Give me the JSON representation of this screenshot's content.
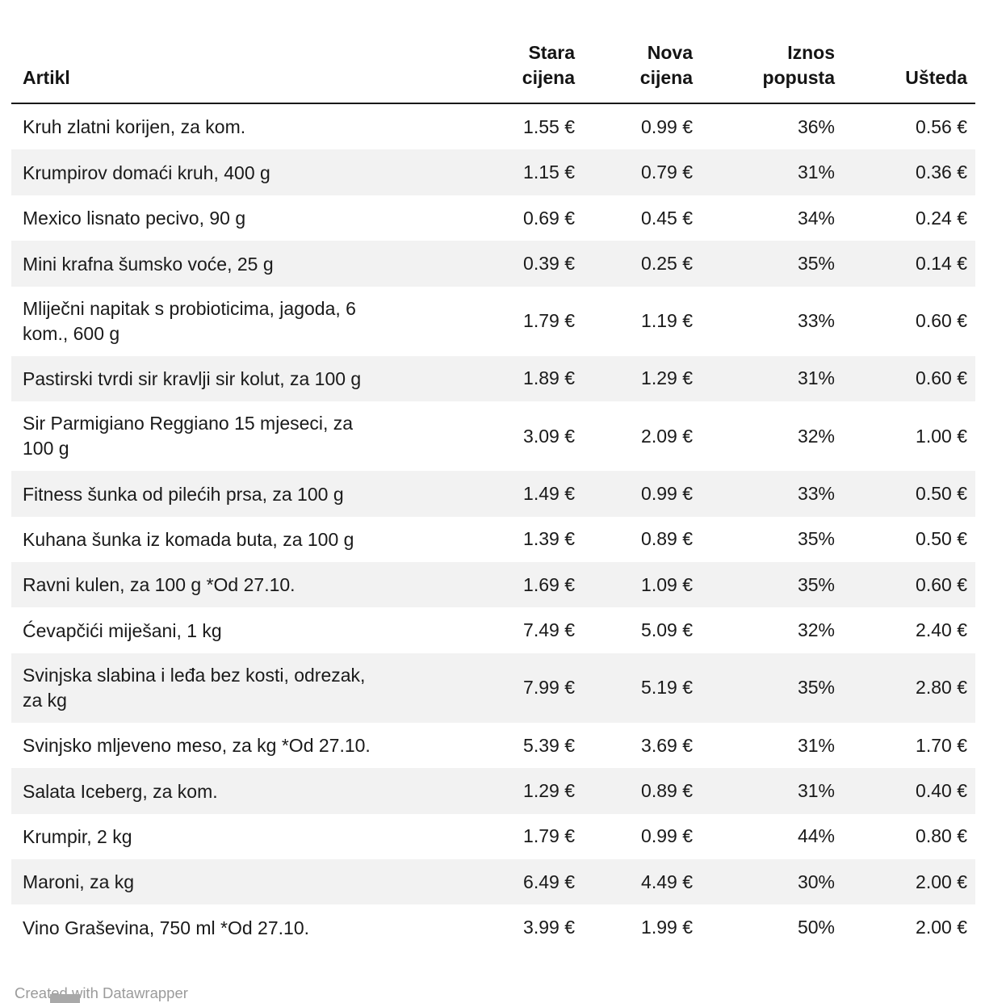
{
  "chart_data": {
    "type": "table",
    "columns": [
      "Artikl",
      "Stara cijena",
      "Nova cijena",
      "Iznos popusta",
      "Ušteda"
    ],
    "rows": [
      [
        "Kruh zlatni korijen, za kom.",
        "1.55 €",
        "0.99 €",
        "36%",
        "0.56 €"
      ],
      [
        "Krumpirov domaći kruh, 400 g",
        "1.15 €",
        "0.79 €",
        "31%",
        "0.36 €"
      ],
      [
        "Mexico lisnato pecivo, 90 g",
        "0.69 €",
        "0.45 €",
        "34%",
        "0.24 €"
      ],
      [
        "Mini krafna šumsko voće, 25 g",
        "0.39 €",
        "0.25 €",
        "35%",
        "0.14 €"
      ],
      [
        "Mliječni napitak s probioticima, jagoda, 6 kom., 600 g",
        "1.79 €",
        "1.19 €",
        "33%",
        "0.60 €"
      ],
      [
        "Pastirski tvrdi sir kravlji sir kolut, za 100 g",
        "1.89 €",
        "1.29 €",
        "31%",
        "0.60 €"
      ],
      [
        "Sir Parmigiano Reggiano 15 mjeseci, za 100 g",
        "3.09 €",
        "2.09 €",
        "32%",
        "1.00 €"
      ],
      [
        "Fitness šunka od pilećih prsa, za 100 g",
        "1.49 €",
        "0.99 €",
        "33%",
        "0.50 €"
      ],
      [
        "Kuhana šunka iz komada buta, za 100 g",
        "1.39 €",
        "0.89 €",
        "35%",
        "0.50 €"
      ],
      [
        "Ravni kulen, za 100 g *Od 27.10.",
        "1.69 €",
        "1.09 €",
        "35%",
        "0.60 €"
      ],
      [
        "Ćevapčići miješani, 1 kg",
        "7.49 €",
        "5.09 €",
        "32%",
        "2.40 €"
      ],
      [
        "Svinjska slabina i leđa bez kosti, odrezak, za kg",
        "7.99 €",
        "5.19 €",
        "35%",
        "2.80 €"
      ],
      [
        "Svinjsko mljeveno meso, za kg *Od 27.10.",
        "5.39 €",
        "3.69 €",
        "31%",
        "1.70 €"
      ],
      [
        "Salata Iceberg, za kom.",
        "1.29 €",
        "0.89 €",
        "31%",
        "0.40 €"
      ],
      [
        "Krumpir, 2 kg",
        "1.79 €",
        "0.99 €",
        "44%",
        "0.80 €"
      ],
      [
        "Maroni, za kg",
        "6.49 €",
        "4.49 €",
        "30%",
        "2.00 €"
      ],
      [
        "Vino Graševina, 750 ml *Od 27.10.",
        "3.99 €",
        "1.99 €",
        "50%",
        "2.00 €"
      ]
    ]
  },
  "footer": {
    "credit": "Created with Datawrapper"
  },
  "colors": {
    "stripe": "#f2f2f2",
    "header_rule": "#191919",
    "text": "#1a1a1a",
    "muted": "#9b9b9b"
  }
}
